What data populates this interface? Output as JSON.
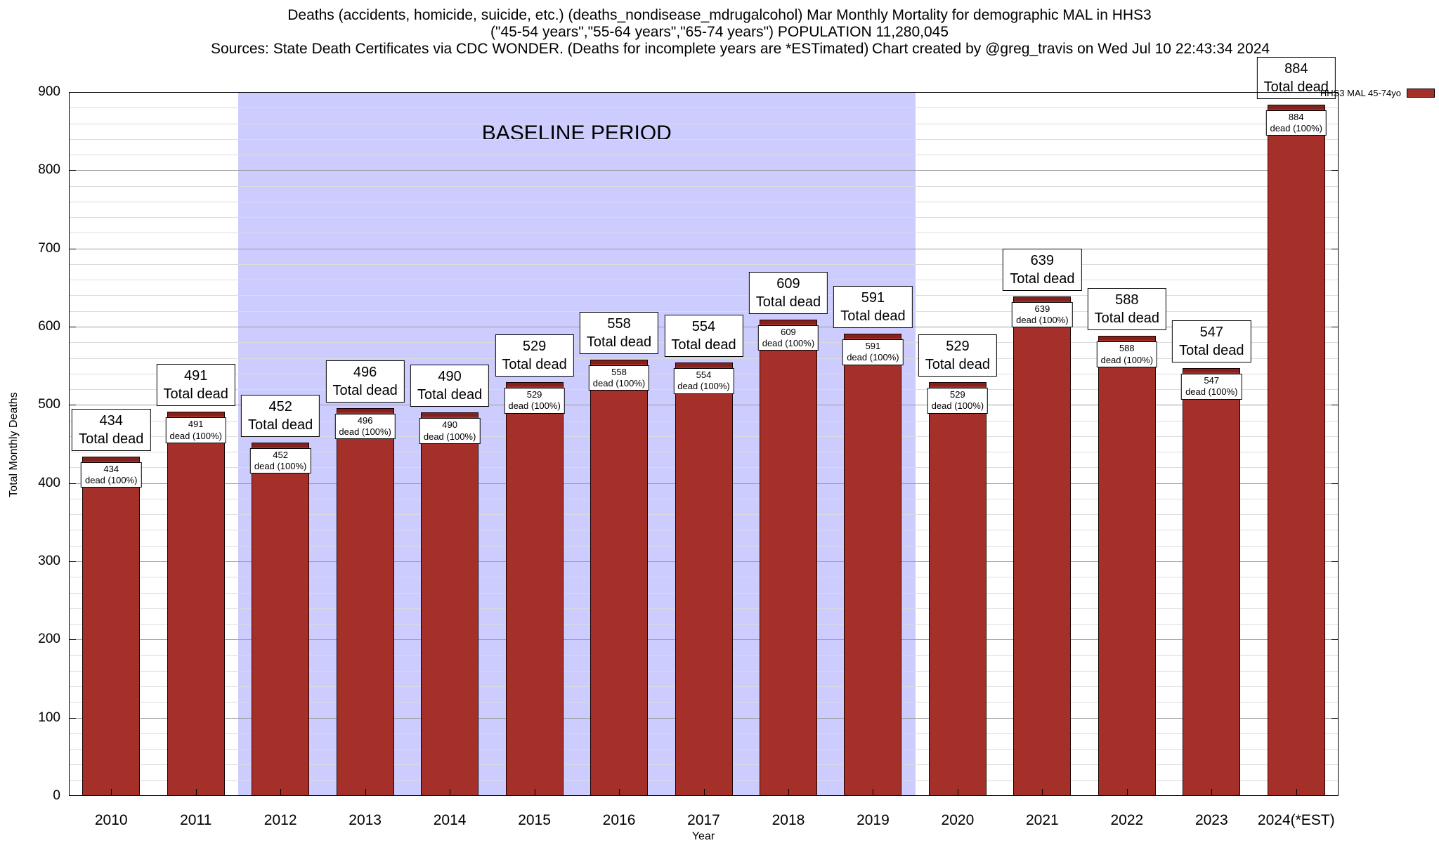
{
  "chart_data": {
    "type": "bar",
    "title": "Deaths (accidents, homicide, suicide, etc.) (deaths_nondisease_mdrugalcohol) Mar Monthly Mortality for demographic MAL in HHS3",
    "subtitle": "(\"45-54 years\",\"55-64 years\",\"65-74 years\") POPULATION 11,280,045",
    "source_note": "Sources: State Death Certificates via CDC WONDER. (Deaths for incomplete years are *ESTimated)",
    "credit": "Chart created by @greg_travis on Wed Jul 10 22:43:34 2024",
    "categories": [
      "2010",
      "2011",
      "2012",
      "2013",
      "2014",
      "2015",
      "2016",
      "2017",
      "2018",
      "2019",
      "2020",
      "2021",
      "2022",
      "2023",
      "2024(*EST)"
    ],
    "values": [
      434,
      491,
      452,
      496,
      490,
      529,
      558,
      554,
      609,
      591,
      529,
      639,
      588,
      547,
      884
    ],
    "xlabel": "Year",
    "ylabel": "Total Monthly Deaths",
    "ylim": [
      0,
      900
    ],
    "ytick_step": 100,
    "minor_tick_step": 20,
    "grid": true,
    "bar_color": "#a5302a",
    "bar_top_label_line2": "Total dead",
    "bar_inner_label_line2": "dead (100%)",
    "baseline_band": {
      "label": "BASELINE PERIOD",
      "start_category": "2012",
      "end_category": "2019",
      "start_index": 2,
      "end_index": 9,
      "color": "#ccccff"
    },
    "legend": {
      "label": "HHS3 MAL 45-74yo",
      "position": "top-right-outside"
    }
  }
}
